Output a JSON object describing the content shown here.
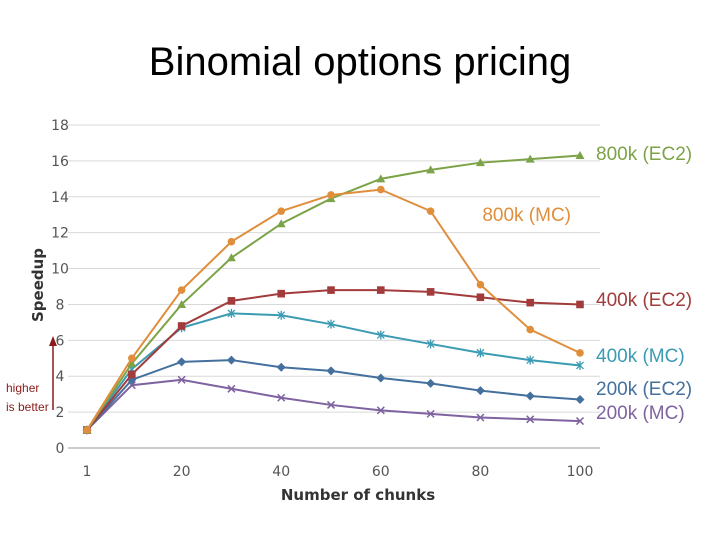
{
  "slide_title": "Binomial options pricing",
  "chart_data": {
    "type": "line",
    "title": "",
    "xlabel": "Number of chunks",
    "ylabel": "Speedup",
    "x": [
      1,
      10,
      20,
      30,
      40,
      50,
      60,
      70,
      80,
      90,
      100
    ],
    "x_ticks": [
      1,
      20,
      40,
      60,
      80,
      100
    ],
    "y_ticks": [
      0,
      2,
      4,
      6,
      8,
      10,
      12,
      14,
      16,
      18
    ],
    "xlim": [
      1,
      104
    ],
    "ylim": [
      0,
      18
    ],
    "grid": true,
    "series": [
      {
        "name": "800k (EC2)",
        "color": "#7ca347",
        "marker": "triangle",
        "values": [
          1.0,
          4.7,
          8.0,
          10.6,
          12.5,
          13.9,
          15.0,
          15.5,
          15.9,
          16.1,
          16.3
        ]
      },
      {
        "name": "800k (MC)",
        "color": "#e08e3c",
        "marker": "circle",
        "values": [
          1.0,
          5.0,
          8.8,
          11.5,
          13.2,
          14.1,
          14.4,
          13.2,
          9.1,
          6.6,
          5.3
        ]
      },
      {
        "name": "400k (EC2)",
        "color": "#a23b3b",
        "marker": "square",
        "values": [
          1.0,
          4.1,
          6.8,
          8.2,
          8.6,
          8.8,
          8.8,
          8.7,
          8.4,
          8.1,
          8.0
        ]
      },
      {
        "name": "400k (MC)",
        "color": "#3b9bb3",
        "marker": "star",
        "values": [
          1.0,
          4.4,
          6.7,
          7.5,
          7.4,
          6.9,
          6.3,
          5.8,
          5.3,
          4.9,
          4.6
        ]
      },
      {
        "name": "200k (EC2)",
        "color": "#44709e",
        "marker": "diamond",
        "values": [
          1.0,
          3.8,
          4.8,
          4.9,
          4.5,
          4.3,
          3.9,
          3.6,
          3.2,
          2.9,
          2.7
        ]
      },
      {
        "name": "200k (MC)",
        "color": "#7e63a0",
        "marker": "x",
        "values": [
          1.0,
          3.5,
          3.8,
          3.3,
          2.8,
          2.4,
          2.1,
          1.9,
          1.7,
          1.6,
          1.5
        ]
      }
    ],
    "annotation": {
      "line1": "higher",
      "line2": "is  better"
    }
  }
}
